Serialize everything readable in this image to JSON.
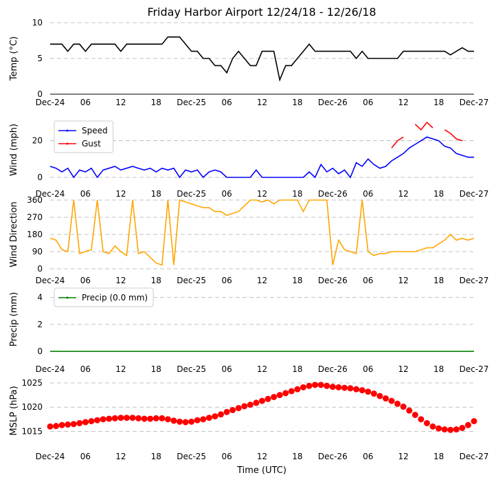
{
  "chart_data": [
    {
      "type": "line",
      "title": "Friday Harbor Airport 12/24/18 - 12/26/18",
      "ylabel": "Temp (°C)",
      "x": [
        0,
        1,
        2,
        3,
        4,
        5,
        6,
        7,
        8,
        9,
        10,
        11,
        12,
        13,
        14,
        15,
        16,
        17,
        18,
        19,
        20,
        21,
        22,
        23,
        24,
        25,
        26,
        27,
        28,
        29,
        30,
        31,
        32,
        33,
        34,
        35,
        36,
        37,
        38,
        39,
        40,
        41,
        42,
        43,
        44,
        45,
        46,
        47,
        48,
        49,
        50,
        51,
        52,
        53,
        54,
        55,
        56,
        57,
        58,
        59,
        60,
        61,
        62,
        63,
        64,
        65,
        66,
        67,
        68,
        69,
        70,
        71,
        72
      ],
      "values": [
        7,
        7,
        7,
        6,
        7,
        7,
        6,
        7,
        7,
        7,
        7,
        7,
        6,
        7,
        7,
        7,
        7,
        7,
        7,
        7,
        8,
        8,
        8,
        7,
        6,
        6,
        5,
        5,
        4,
        4,
        3,
        5,
        6,
        5,
        4,
        4,
        6,
        6,
        6,
        2,
        4,
        4,
        5,
        6,
        7,
        6,
        6,
        6,
        6,
        6,
        6,
        6,
        5,
        6,
        5,
        5,
        5,
        5,
        5,
        5,
        6,
        6,
        6,
        6,
        6,
        6,
        6,
        6,
        5.5,
        6,
        6.5,
        6,
        6
      ],
      "color": "#000000",
      "xlim": [
        0,
        72
      ],
      "xticks": [
        {
          "value": 0,
          "label": "Dec-24"
        },
        {
          "value": 6,
          "label": "06"
        },
        {
          "value": 12,
          "label": "12"
        },
        {
          "value": 18,
          "label": "18"
        },
        {
          "value": 24,
          "label": "Dec-25"
        },
        {
          "value": 30,
          "label": "06"
        },
        {
          "value": 36,
          "label": "12"
        },
        {
          "value": 42,
          "label": "18"
        },
        {
          "value": 48,
          "label": "Dec-26"
        },
        {
          "value": 54,
          "label": "06"
        },
        {
          "value": 60,
          "label": "12"
        },
        {
          "value": 66,
          "label": "18"
        },
        {
          "value": 72,
          "label": "Dec-27"
        }
      ],
      "ylim": [
        0,
        10
      ],
      "yticks": [
        0,
        5,
        10
      ],
      "grid": true
    },
    {
      "type": "line",
      "ylabel": "Wind (mph)",
      "legend": "upper left",
      "x": [
        0,
        1,
        2,
        3,
        4,
        5,
        6,
        7,
        8,
        9,
        10,
        11,
        12,
        13,
        14,
        15,
        16,
        17,
        18,
        19,
        20,
        21,
        22,
        23,
        24,
        25,
        26,
        27,
        28,
        29,
        30,
        31,
        32,
        33,
        34,
        35,
        36,
        37,
        38,
        39,
        40,
        41,
        42,
        43,
        44,
        45,
        46,
        47,
        48,
        49,
        50,
        51,
        52,
        53,
        54,
        55,
        56,
        57,
        58,
        59,
        60,
        61,
        62,
        63,
        64,
        65,
        66,
        67,
        68,
        69,
        70,
        71,
        72
      ],
      "series": [
        {
          "name": "Speed",
          "color": "#0000ff",
          "values": [
            6,
            5,
            3,
            5,
            0,
            4,
            3,
            5,
            0,
            4,
            5,
            6,
            4,
            5,
            6,
            5,
            4,
            5,
            3,
            5,
            4,
            5,
            0,
            4,
            3,
            4,
            0,
            3,
            4,
            3,
            0,
            0,
            0,
            0,
            0,
            4,
            0,
            0,
            0,
            0,
            0,
            0,
            0,
            0,
            3,
            0,
            7,
            3,
            5,
            2,
            4,
            0,
            8,
            6,
            10,
            7,
            5,
            6,
            9,
            11,
            13,
            16,
            18,
            20,
            22,
            21,
            20,
            17,
            16,
            13,
            12,
            11,
            11
          ]
        },
        {
          "name": "Gust",
          "color": "#ff0000",
          "values": [
            null,
            null,
            null,
            null,
            null,
            null,
            null,
            null,
            null,
            null,
            null,
            null,
            null,
            null,
            null,
            null,
            null,
            null,
            null,
            null,
            null,
            null,
            null,
            null,
            null,
            null,
            null,
            null,
            null,
            null,
            null,
            null,
            null,
            null,
            null,
            null,
            null,
            null,
            null,
            null,
            null,
            null,
            null,
            null,
            null,
            null,
            null,
            null,
            null,
            null,
            null,
            null,
            null,
            null,
            null,
            null,
            null,
            null,
            16,
            20,
            22,
            null,
            29,
            26,
            30,
            27,
            null,
            26,
            24,
            21,
            20,
            null,
            null
          ]
        }
      ],
      "xlim": [
        0,
        72
      ],
      "xticks": [
        {
          "value": 0,
          "label": "Dec-24"
        },
        {
          "value": 6,
          "label": "06"
        },
        {
          "value": 12,
          "label": "12"
        },
        {
          "value": 18,
          "label": "18"
        },
        {
          "value": 24,
          "label": "Dec-25"
        },
        {
          "value": 30,
          "label": "06"
        },
        {
          "value": 36,
          "label": "12"
        },
        {
          "value": 42,
          "label": "18"
        },
        {
          "value": 48,
          "label": "Dec-26"
        },
        {
          "value": 54,
          "label": "06"
        },
        {
          "value": 60,
          "label": "12"
        },
        {
          "value": 66,
          "label": "18"
        },
        {
          "value": 72,
          "label": "Dec-27"
        }
      ],
      "ylim": [
        -3,
        33
      ],
      "yticks": [
        0,
        20
      ],
      "grid": true
    },
    {
      "type": "line",
      "ylabel": "Wind Direction",
      "x": [
        0,
        1,
        2,
        3,
        4,
        5,
        6,
        7,
        8,
        9,
        10,
        11,
        12,
        13,
        14,
        15,
        16,
        17,
        18,
        19,
        20,
        21,
        22,
        23,
        24,
        25,
        26,
        27,
        28,
        29,
        30,
        31,
        32,
        33,
        34,
        35,
        36,
        37,
        38,
        39,
        40,
        41,
        42,
        43,
        44,
        45,
        46,
        47,
        48,
        49,
        50,
        51,
        52,
        53,
        54,
        55,
        56,
        57,
        58,
        59,
        60,
        61,
        62,
        63,
        64,
        65,
        66,
        67,
        68,
        69,
        70,
        71,
        72
      ],
      "values": [
        160,
        150,
        100,
        90,
        360,
        80,
        90,
        100,
        360,
        90,
        80,
        120,
        90,
        70,
        360,
        80,
        90,
        60,
        30,
        20,
        360,
        20,
        360,
        350,
        340,
        330,
        320,
        320,
        300,
        300,
        280,
        290,
        300,
        330,
        360,
        360,
        350,
        360,
        340,
        360,
        360,
        360,
        360,
        300,
        360,
        360,
        360,
        360,
        20,
        150,
        100,
        90,
        80,
        360,
        90,
        70,
        80,
        80,
        90,
        90,
        90,
        90,
        90,
        100,
        110,
        110,
        130,
        150,
        180,
        150,
        160,
        150,
        160
      ],
      "color": "#ffa500",
      "xlim": [
        0,
        72
      ],
      "xticks": [
        {
          "value": 0,
          "label": "Dec-24"
        },
        {
          "value": 6,
          "label": "06"
        },
        {
          "value": 12,
          "label": "12"
        },
        {
          "value": 18,
          "label": "18"
        },
        {
          "value": 24,
          "label": "Dec-25"
        },
        {
          "value": 30,
          "label": "06"
        },
        {
          "value": 36,
          "label": "12"
        },
        {
          "value": 42,
          "label": "18"
        },
        {
          "value": 48,
          "label": "Dec-26"
        },
        {
          "value": 54,
          "label": "06"
        },
        {
          "value": 60,
          "label": "12"
        },
        {
          "value": 66,
          "label": "18"
        },
        {
          "value": 72,
          "label": "Dec-27"
        }
      ],
      "ylim": [
        0,
        360
      ],
      "yticks": [
        0,
        90,
        180,
        270,
        360
      ],
      "grid": true
    },
    {
      "type": "line",
      "ylabel": "Precip (mm)",
      "legend": "upper left",
      "x": [
        0,
        1,
        2,
        3,
        4,
        5,
        6,
        7,
        8,
        9,
        10,
        11,
        12,
        13,
        14,
        15,
        16,
        17,
        18,
        19,
        20,
        21,
        22,
        23,
        24,
        25,
        26,
        27,
        28,
        29,
        30,
        31,
        32,
        33,
        34,
        35,
        36,
        37,
        38,
        39,
        40,
        41,
        42,
        43,
        44,
        45,
        46,
        47,
        48,
        49,
        50,
        51,
        52,
        53,
        54,
        55,
        56,
        57,
        58,
        59,
        60,
        61,
        62,
        63,
        64,
        65,
        66,
        67,
        68,
        69,
        70,
        71,
        72
      ],
      "series": [
        {
          "name": "Precip (0.0 mm)",
          "color": "#008000",
          "values": [
            0,
            0,
            0,
            0,
            0,
            0,
            0,
            0,
            0,
            0,
            0,
            0,
            0,
            0,
            0,
            0,
            0,
            0,
            0,
            0,
            0,
            0,
            0,
            0,
            0,
            0,
            0,
            0,
            0,
            0,
            0,
            0,
            0,
            0,
            0,
            0,
            0,
            0,
            0,
            0,
            0,
            0,
            0,
            0,
            0,
            0,
            0,
            0,
            0,
            0,
            0,
            0,
            0,
            0,
            0,
            0,
            0,
            0,
            0,
            0,
            0,
            0,
            0,
            0,
            0,
            0,
            0,
            0,
            0,
            0,
            0,
            0,
            0
          ]
        }
      ],
      "xlim": [
        0,
        72
      ],
      "xticks": [
        {
          "value": 0,
          "label": "Dec-24"
        },
        {
          "value": 6,
          "label": "06"
        },
        {
          "value": 12,
          "label": "12"
        },
        {
          "value": 18,
          "label": "18"
        },
        {
          "value": 24,
          "label": "Dec-25"
        },
        {
          "value": 30,
          "label": "06"
        },
        {
          "value": 36,
          "label": "12"
        },
        {
          "value": 42,
          "label": "18"
        },
        {
          "value": 48,
          "label": "Dec-26"
        },
        {
          "value": 54,
          "label": "06"
        },
        {
          "value": 60,
          "label": "12"
        },
        {
          "value": 66,
          "label": "18"
        },
        {
          "value": 72,
          "label": "Dec-27"
        }
      ],
      "ylim": [
        -0.25,
        5
      ],
      "yticks": [
        0,
        2,
        4
      ],
      "grid": true
    },
    {
      "type": "scatter",
      "ylabel": "MSLP (hPa)",
      "xlabel": "Time (UTC)",
      "x": [
        0,
        1,
        2,
        3,
        4,
        5,
        6,
        7,
        8,
        9,
        10,
        11,
        12,
        13,
        14,
        15,
        16,
        17,
        18,
        19,
        20,
        21,
        22,
        23,
        24,
        25,
        26,
        27,
        28,
        29,
        30,
        31,
        32,
        33,
        34,
        35,
        36,
        37,
        38,
        39,
        40,
        41,
        42,
        43,
        44,
        45,
        46,
        47,
        48,
        49,
        50,
        51,
        52,
        53,
        54,
        55,
        56,
        57,
        58,
        59,
        60,
        61,
        62,
        63,
        64,
        65,
        66,
        67,
        68,
        69,
        70,
        71,
        72
      ],
      "values": [
        1016,
        1016.1,
        1016.3,
        1016.4,
        1016.5,
        1016.7,
        1016.9,
        1017.1,
        1017.3,
        1017.5,
        1017.6,
        1017.7,
        1017.8,
        1017.8,
        1017.8,
        1017.7,
        1017.6,
        1017.6,
        1017.7,
        1017.7,
        1017.5,
        1017.2,
        1017,
        1016.9,
        1017,
        1017.3,
        1017.5,
        1017.8,
        1018.1,
        1018.5,
        1019,
        1019.4,
        1019.8,
        1020.2,
        1020.5,
        1020.9,
        1021.3,
        1021.7,
        1022.1,
        1022.5,
        1022.9,
        1023.3,
        1023.7,
        1024.1,
        1024.4,
        1024.6,
        1024.6,
        1024.4,
        1024.2,
        1024.1,
        1024,
        1023.9,
        1023.7,
        1023.5,
        1023.2,
        1022.8,
        1022.3,
        1021.8,
        1021.3,
        1020.7,
        1020.1,
        1019.3,
        1018.4,
        1017.5,
        1016.7,
        1016,
        1015.6,
        1015.4,
        1015.3,
        1015.4,
        1015.7,
        1016.3,
        1017.1
      ],
      "color": "#ff0000",
      "xlim": [
        0,
        72
      ],
      "xticks": [
        {
          "value": 0,
          "label": "Dec-24"
        },
        {
          "value": 6,
          "label": "06"
        },
        {
          "value": 12,
          "label": "12"
        },
        {
          "value": 18,
          "label": "18"
        },
        {
          "value": 24,
          "label": "Dec-25"
        },
        {
          "value": 30,
          "label": "06"
        },
        {
          "value": 36,
          "label": "12"
        },
        {
          "value": 42,
          "label": "18"
        },
        {
          "value": 48,
          "label": "Dec-26"
        },
        {
          "value": 54,
          "label": "06"
        },
        {
          "value": 60,
          "label": "12"
        },
        {
          "value": 66,
          "label": "18"
        },
        {
          "value": 72,
          "label": "Dec-27"
        }
      ],
      "ylim": [
        1012.5,
        1026
      ],
      "yticks": [
        1015,
        1020,
        1025
      ],
      "grid": true
    }
  ]
}
